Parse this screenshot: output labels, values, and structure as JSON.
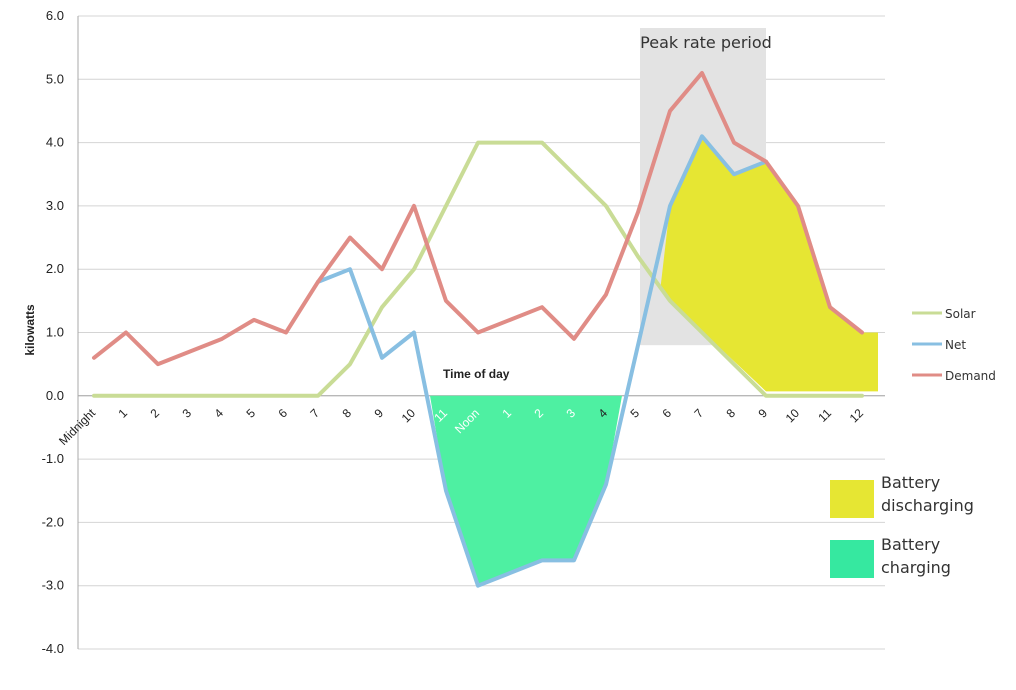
{
  "chart_data": {
    "type": "line",
    "title": "",
    "xlabel": "Time of day",
    "ylabel": "kilowatts",
    "ylim": [
      -4.0,
      6.0
    ],
    "yticks": [
      "6.0",
      "5.0",
      "4.0",
      "3.0",
      "2.0",
      "1.0",
      "0.0",
      "-1.0",
      "-2.0",
      "-3.0",
      "-4.0"
    ],
    "ytick_values": [
      6,
      5,
      4,
      3,
      2,
      1,
      0,
      -1,
      -2,
      -3,
      -4
    ],
    "categories": [
      "Midnight",
      "1",
      "2",
      "3",
      "4",
      "5",
      "6",
      "7",
      "8",
      "9",
      "10",
      "11",
      "Noon",
      "1",
      "2",
      "3",
      "4",
      "5",
      "6",
      "7",
      "8",
      "9",
      "10",
      "11",
      "12"
    ],
    "grid": true,
    "series": [
      {
        "name": "Solar",
        "color": "#c9dc96",
        "values": [
          0,
          0,
          0,
          0,
          0,
          0,
          0,
          0,
          0.5,
          1.4,
          2.0,
          3.0,
          4.0,
          4.0,
          4.0,
          3.5,
          3.0,
          2.2,
          1.5,
          1.0,
          0.5,
          0,
          0,
          0,
          0
        ]
      },
      {
        "name": "Net",
        "color": "#88bfe2",
        "values": [
          null,
          null,
          null,
          null,
          null,
          null,
          null,
          1.8,
          2.0,
          0.6,
          1.0,
          -1.5,
          -3.0,
          -2.8,
          -2.6,
          -2.6,
          -1.4,
          0.8,
          3.0,
          4.1,
          3.5,
          3.7,
          null,
          null,
          null
        ]
      },
      {
        "name": "Demand",
        "color": "#e08c86",
        "values": [
          0.6,
          1.0,
          0.5,
          0.7,
          0.9,
          1.2,
          1.0,
          1.8,
          2.5,
          2.0,
          3.0,
          1.5,
          1.0,
          1.2,
          1.4,
          0.9,
          1.6,
          2.9,
          4.5,
          5.1,
          4.0,
          3.7,
          3.0,
          1.4,
          1.0
        ]
      }
    ],
    "legend": [
      "Solar",
      "Net",
      "Demand"
    ],
    "legend_position": "right",
    "annotations": {
      "peak_period": {
        "label": "Peak rate period",
        "x_start": 17,
        "x_end": 21,
        "color": "#e3e3e3"
      },
      "discharging": {
        "label_line1": "Battery",
        "label_line2": "discharging",
        "color": "#e6e633",
        "boundary_top": [
          [
            17.7,
            1.7
          ],
          [
            18,
            3.0
          ],
          [
            19,
            4.1
          ],
          [
            20,
            3.5
          ],
          [
            21,
            3.7
          ],
          [
            22,
            3.0
          ],
          [
            23,
            1.4
          ],
          [
            24,
            1.0
          ],
          [
            24.5,
            1.0
          ]
        ],
        "boundary_bottom": [
          [
            24.5,
            0.07
          ],
          [
            21,
            0.07
          ],
          [
            18,
            1.5
          ],
          [
            17.7,
            1.7
          ]
        ]
      },
      "charging": {
        "label_line1": "Battery",
        "label_line2": "charging",
        "color": "#36e8a0",
        "boundary_top": [
          [
            10.5,
            0
          ],
          [
            16.5,
            0
          ]
        ],
        "boundary_bottom": [
          [
            16.5,
            0
          ],
          [
            16,
            -1.4
          ],
          [
            15,
            -2.6
          ],
          [
            14,
            -2.6
          ],
          [
            12,
            -3.0
          ],
          [
            11,
            -1.5
          ],
          [
            10.5,
            0
          ]
        ]
      }
    }
  }
}
